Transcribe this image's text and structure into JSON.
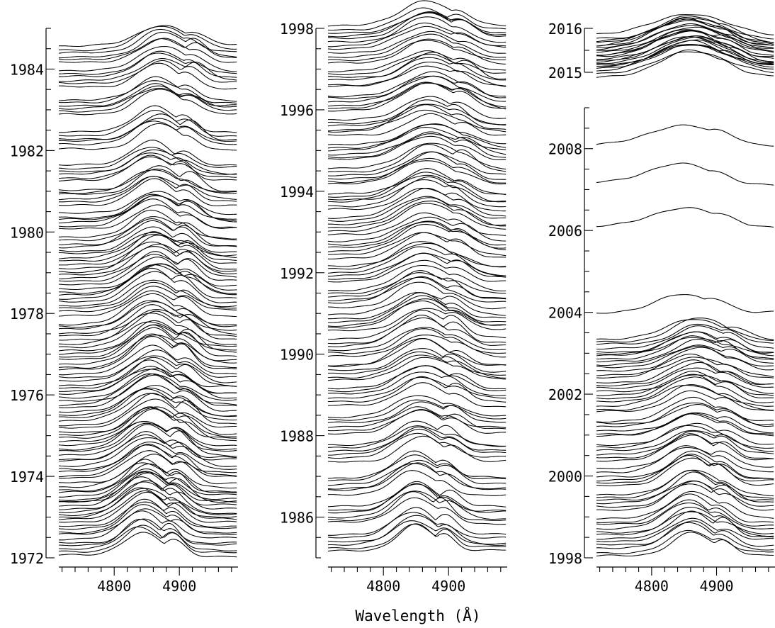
{
  "chart_data": [
    {
      "type": "line",
      "panel": "left",
      "y_tick_labels": [
        "1972",
        "1974",
        "1976",
        "1978",
        "1980",
        "1982",
        "1984"
      ],
      "y_range": [
        1972,
        1985.0
      ],
      "x_tick_labels": [
        "4800",
        "4900"
      ],
      "x_range": [
        4715,
        4990
      ],
      "series": [
        {
          "year": 1972.3,
          "peak": 4842,
          "width": 38,
          "amp": 0.6
        },
        {
          "year": 1972.8,
          "peak": 4848,
          "width": 42,
          "amp": 0.65
        },
        {
          "year": 1973.2,
          "peak": 4845,
          "width": 45,
          "amp": 0.7
        },
        {
          "year": 1973.6,
          "peak": 4850,
          "width": 44,
          "amp": 0.68
        },
        {
          "year": 1974.1,
          "peak": 4855,
          "width": 47,
          "amp": 0.7
        },
        {
          "year": 1974.6,
          "peak": 4850,
          "width": 46,
          "amp": 0.66
        },
        {
          "year": 1975.1,
          "peak": 4860,
          "width": 48,
          "amp": 0.7
        },
        {
          "year": 1975.6,
          "peak": 4855,
          "width": 50,
          "amp": 0.72
        },
        {
          "year": 1976.1,
          "peak": 4858,
          "width": 48,
          "amp": 0.7
        },
        {
          "year": 1976.6,
          "peak": 4862,
          "width": 50,
          "amp": 0.72
        },
        {
          "year": 1977.1,
          "peak": 4860,
          "width": 47,
          "amp": 0.7
        },
        {
          "year": 1977.6,
          "peak": 4862,
          "width": 48,
          "amp": 0.7
        },
        {
          "year": 1978.2,
          "peak": 4860,
          "width": 46,
          "amp": 0.68
        },
        {
          "year": 1978.7,
          "peak": 4865,
          "width": 48,
          "amp": 0.66
        },
        {
          "year": 1979.2,
          "peak": 4862,
          "width": 47,
          "amp": 0.65
        },
        {
          "year": 1979.7,
          "peak": 4860,
          "width": 46,
          "amp": 0.62
        },
        {
          "year": 1980.3,
          "peak": 4862,
          "width": 48,
          "amp": 0.6
        },
        {
          "year": 1980.9,
          "peak": 4865,
          "width": 46,
          "amp": 0.6
        },
        {
          "year": 1981.5,
          "peak": 4860,
          "width": 44,
          "amp": 0.58
        },
        {
          "year": 1982.3,
          "peak": 4866,
          "width": 46,
          "amp": 0.58
        },
        {
          "year": 1983.1,
          "peak": 4865,
          "width": 48,
          "amp": 0.56
        },
        {
          "year": 1983.8,
          "peak": 4870,
          "width": 46,
          "amp": 0.58
        },
        {
          "year": 1984.4,
          "peak": 4872,
          "width": 48,
          "amp": 0.56
        }
      ]
    },
    {
      "type": "line",
      "panel": "middle",
      "y_tick_labels": [
        "1986",
        "1988",
        "1990",
        "1992",
        "1994",
        "1996",
        "1998"
      ],
      "y_range": [
        1985.0,
        1998.0
      ],
      "x_tick_labels": [
        "4800",
        "4900"
      ],
      "x_range": [
        4715,
        4990
      ],
      "series": [
        {
          "year": 1985.4,
          "peak": 4848,
          "width": 42,
          "amp": 0.65
        },
        {
          "year": 1986.1,
          "peak": 4848,
          "width": 44,
          "amp": 0.62
        },
        {
          "year": 1986.8,
          "peak": 4850,
          "width": 46,
          "amp": 0.6
        },
        {
          "year": 1987.6,
          "peak": 4855,
          "width": 48,
          "amp": 0.58
        },
        {
          "year": 1988.3,
          "peak": 4858,
          "width": 50,
          "amp": 0.56
        },
        {
          "year": 1989.0,
          "peak": 4860,
          "width": 50,
          "amp": 0.6
        },
        {
          "year": 1989.6,
          "peak": 4862,
          "width": 52,
          "amp": 0.62
        },
        {
          "year": 1990.2,
          "peak": 4862,
          "width": 52,
          "amp": 0.62
        },
        {
          "year": 1990.8,
          "peak": 4860,
          "width": 52,
          "amp": 0.6
        },
        {
          "year": 1991.4,
          "peak": 4858,
          "width": 52,
          "amp": 0.58
        },
        {
          "year": 1992.0,
          "peak": 4862,
          "width": 54,
          "amp": 0.6
        },
        {
          "year": 1992.6,
          "peak": 4865,
          "width": 55,
          "amp": 0.62
        },
        {
          "year": 1993.2,
          "peak": 4868,
          "width": 56,
          "amp": 0.62
        },
        {
          "year": 1993.8,
          "peak": 4866,
          "width": 55,
          "amp": 0.6
        },
        {
          "year": 1994.4,
          "peak": 4870,
          "width": 55,
          "amp": 0.6
        },
        {
          "year": 1995.0,
          "peak": 4872,
          "width": 55,
          "amp": 0.58
        },
        {
          "year": 1995.6,
          "peak": 4870,
          "width": 54,
          "amp": 0.58
        },
        {
          "year": 1996.2,
          "peak": 4872,
          "width": 55,
          "amp": 0.58
        },
        {
          "year": 1996.8,
          "peak": 4870,
          "width": 54,
          "amp": 0.56
        },
        {
          "year": 1997.4,
          "peak": 4868,
          "width": 54,
          "amp": 0.56
        },
        {
          "year": 1997.9,
          "peak": 4866,
          "width": 52,
          "amp": 0.56
        }
      ]
    },
    {
      "type": "line",
      "panel": "right-top",
      "y_tick_labels": [
        "2015",
        "2016"
      ],
      "y_range": [
        2015.0,
        2016.0
      ],
      "x_tick_labels": [],
      "x_range": [
        4715,
        4990
      ],
      "series": [
        {
          "year": 2015.1,
          "peak": 4860,
          "width": 70,
          "amp": 0.55
        },
        {
          "year": 2015.3,
          "peak": 4862,
          "width": 72,
          "amp": 0.55
        },
        {
          "year": 2015.5,
          "peak": 4858,
          "width": 70,
          "amp": 0.55
        },
        {
          "year": 2015.7,
          "peak": 4860,
          "width": 72,
          "amp": 0.55
        }
      ]
    },
    {
      "type": "line",
      "panel": "right-bottom",
      "y_tick_labels": [
        "1998",
        "2000",
        "2002",
        "2004",
        "2006",
        "2008"
      ],
      "y_range": [
        1998.0,
        2009.0
      ],
      "x_tick_labels": [
        "4800",
        "4900"
      ],
      "x_range": [
        4715,
        4990
      ],
      "series": [
        {
          "year": 1998.3,
          "peak": 4858,
          "width": 46,
          "amp": 0.6
        },
        {
          "year": 1998.8,
          "peak": 4860,
          "width": 48,
          "amp": 0.6
        },
        {
          "year": 1999.4,
          "peak": 4862,
          "width": 48,
          "amp": 0.58
        },
        {
          "year": 2000.0,
          "peak": 4860,
          "width": 48,
          "amp": 0.58
        },
        {
          "year": 2000.6,
          "peak": 4862,
          "width": 50,
          "amp": 0.58
        },
        {
          "year": 2001.2,
          "peak": 4865,
          "width": 52,
          "amp": 0.55
        },
        {
          "year": 2001.8,
          "peak": 4860,
          "width": 52,
          "amp": 0.55
        },
        {
          "year": 2002.3,
          "peak": 4865,
          "width": 55,
          "amp": 0.5
        },
        {
          "year": 2002.8,
          "peak": 4868,
          "width": 55,
          "amp": 0.5
        },
        {
          "year": 2003.2,
          "peak": 4870,
          "width": 55,
          "amp": 0.5
        },
        {
          "year": 2004.0,
          "peak": 4840,
          "width": 60,
          "amp": 0.45
        },
        {
          "year": 2006.1,
          "peak": 4850,
          "width": 70,
          "amp": 0.45
        },
        {
          "year": 2007.2,
          "peak": 4840,
          "width": 72,
          "amp": 0.45
        },
        {
          "year": 2008.1,
          "peak": 4850,
          "width": 75,
          "amp": 0.45
        }
      ]
    }
  ],
  "xlabel": "Wavelength (Å)"
}
